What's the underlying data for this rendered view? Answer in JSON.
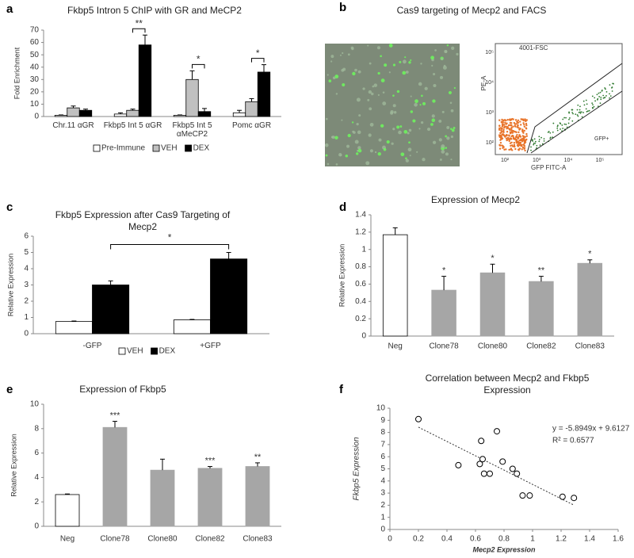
{
  "chart_data": [
    {
      "type": "grouped_bar",
      "panel": "a",
      "title": "Fkbp5 Intron 5 ChIP with GR and MeCP2",
      "y_label": "Fold Enrichment",
      "categories": [
        "Chr.11 αGR",
        "Fkbp5 Int 5 αGR",
        "Fkbp5 Int 5 αMeCP2",
        "Pomc αGR"
      ],
      "series": [
        {
          "name": "Pre-Immune",
          "color": "#ffffff",
          "values": [
            1,
            2,
            1,
            3
          ],
          "errors": [
            0.3,
            1,
            0.3,
            2
          ]
        },
        {
          "name": "VEH",
          "color": "#c0c0c0",
          "values": [
            7,
            5,
            30,
            12
          ],
          "errors": [
            1.5,
            1,
            7,
            2.5
          ]
        },
        {
          "name": "DEX",
          "color": "#000000",
          "values": [
            5,
            58,
            4,
            36
          ],
          "errors": [
            1,
            8,
            2.5,
            6
          ]
        }
      ],
      "significance": [
        null,
        "**",
        "*",
        "*"
      ],
      "ylim": [
        0,
        70
      ],
      "yticks": [
        0,
        10,
        20,
        30,
        40,
        50,
        60,
        70
      ]
    },
    {
      "type": "image",
      "panel": "b",
      "title": "Cas9 targeting of Mecp2 and FACS",
      "facs": {
        "title": "4001-FSC",
        "x_label": "GFP FITC-A",
        "y_label": "PE-A",
        "gate_label": "GFP+",
        "x_tick_labels": [
          "10²",
          "10³",
          "10⁴",
          "10⁵"
        ],
        "y_tick_labels": [
          "10²",
          "10³",
          "10⁴",
          "10⁵"
        ]
      }
    },
    {
      "type": "grouped_bar",
      "panel": "c",
      "title": [
        "Fkbp5 Expression after Cas9 Targeting of",
        "Mecp2"
      ],
      "y_label": "Relative Expression",
      "categories": [
        "-GFP",
        "+GFP"
      ],
      "series": [
        {
          "name": "VEH",
          "color": "#ffffff",
          "values": [
            0.75,
            0.85
          ],
          "errors": [
            0.03,
            0.03
          ]
        },
        {
          "name": "DEX",
          "color": "#000000",
          "values": [
            3.0,
            4.6
          ],
          "errors": [
            0.25,
            0.4
          ]
        }
      ],
      "comparison": "*",
      "ylim": [
        0,
        6
      ],
      "yticks": [
        0,
        1,
        2,
        3,
        4,
        5,
        6
      ]
    },
    {
      "type": "bar",
      "panel": "d",
      "title": "Expression of Mecp2",
      "y_label": "Relative Expression",
      "categories": [
        "Neg",
        "Clone78",
        "Clone80",
        "Clone82",
        "Clone83"
      ],
      "values": [
        1.17,
        0.53,
        0.73,
        0.63,
        0.84
      ],
      "errors": [
        0.08,
        0.16,
        0.1,
        0.06,
        0.04
      ],
      "colors": [
        "#ffffff",
        "#a6a6a6",
        "#a6a6a6",
        "#a6a6a6",
        "#a6a6a6"
      ],
      "significance": [
        null,
        "*",
        "*",
        "**",
        "*"
      ],
      "ylim": [
        0,
        1.4
      ],
      "yticks": [
        0,
        0.2,
        0.4,
        0.6,
        0.8,
        1,
        1.2,
        1.4
      ]
    },
    {
      "type": "bar",
      "panel": "e",
      "title": "Expression of Fkbp5",
      "y_label": "Relative Expression",
      "categories": [
        "Neg",
        "Clone78",
        "Clone80",
        "Clone82",
        "Clone83"
      ],
      "values": [
        2.6,
        8.1,
        4.6,
        4.75,
        4.9
      ],
      "errors": [
        0.05,
        0.5,
        0.9,
        0.15,
        0.3
      ],
      "colors": [
        "#ffffff",
        "#a6a6a6",
        "#a6a6a6",
        "#a6a6a6",
        "#a6a6a6"
      ],
      "significance": [
        null,
        "***",
        null,
        "***",
        "**"
      ],
      "ylim": [
        0,
        10
      ],
      "yticks": [
        0,
        2,
        4,
        6,
        8,
        10
      ]
    },
    {
      "type": "scatter",
      "panel": "f",
      "title": [
        "Correlation between Mecp2 and Fkbp5",
        "Expression"
      ],
      "x_label": "Mecp2 Expression",
      "y_label": "Fkbp5 Expression",
      "x": [
        0.2,
        0.48,
        0.63,
        0.64,
        0.65,
        0.66,
        0.7,
        0.75,
        0.79,
        0.86,
        0.89,
        0.93,
        0.98,
        1.21,
        1.29
      ],
      "y": [
        9.1,
        5.3,
        5.4,
        7.3,
        5.8,
        4.6,
        4.6,
        8.1,
        5.6,
        5.0,
        4.6,
        2.8,
        2.8,
        2.7,
        2.6
      ],
      "trendline": {
        "slope": -5.8949,
        "intercept": 9.6127,
        "label": "y = -5.8949x + 9.6127",
        "r2_label": "R² = 0.6577"
      },
      "xlim": [
        0,
        1.6
      ],
      "xticks": [
        0,
        0.2,
        0.4,
        0.6,
        0.8,
        1,
        1.2,
        1.4,
        1.6
      ],
      "ylim": [
        0,
        10
      ],
      "yticks": [
        0,
        1,
        2,
        3,
        4,
        5,
        6,
        7,
        8,
        9,
        10
      ]
    }
  ]
}
